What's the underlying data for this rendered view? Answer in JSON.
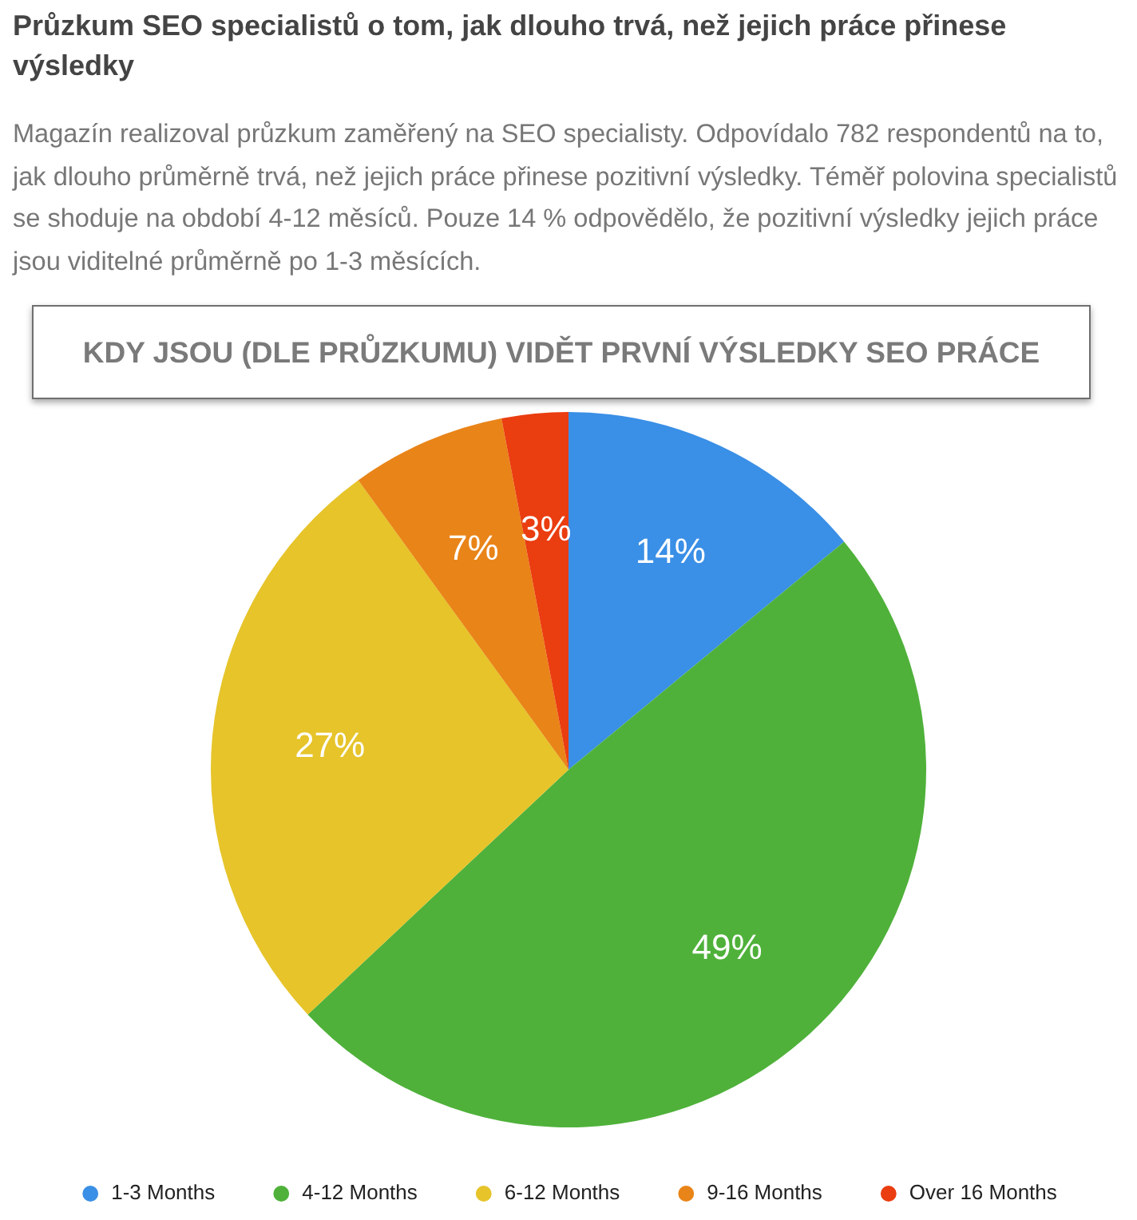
{
  "chart_data": {
    "type": "pie",
    "title": "Průzkum SEO specialistů o tom, jak dlouho trvá, než jejich práce přinese výsledky",
    "subtitle": "Magazín realizoval průzkum zaměřený na SEO specialisty. Odpovídalo 782 respondentů na to, jak dlouho průměrně trvá, než jejich práce přinese pozitivní výsledky. Téměř polovina specialistů se shoduje na období 4-12 měsíců. Pouze 14 % odpovědělo, že pozitivní výsledky jejich práce jsou viditelné průměrně po 1-3 měsících.",
    "annotations": [
      "KDY JSOU (DLE PRŮZKUMU) VIDĚT PRVNÍ VÝSLEDKY SEO PRÁCE"
    ],
    "categories": [
      "1-3 Months",
      "4-12 Months",
      "6-12 Months",
      "9-16 Months",
      "Over 16 Months"
    ],
    "values": [
      14,
      49,
      27,
      7,
      3
    ],
    "colors": [
      "#3a8fe6",
      "#4fb13a",
      "#e6c42a",
      "#e98418",
      "#ea3d10"
    ],
    "value_labels": [
      "14%",
      "49%",
      "27%",
      "7%",
      "3%"
    ],
    "legend": "bottom"
  }
}
